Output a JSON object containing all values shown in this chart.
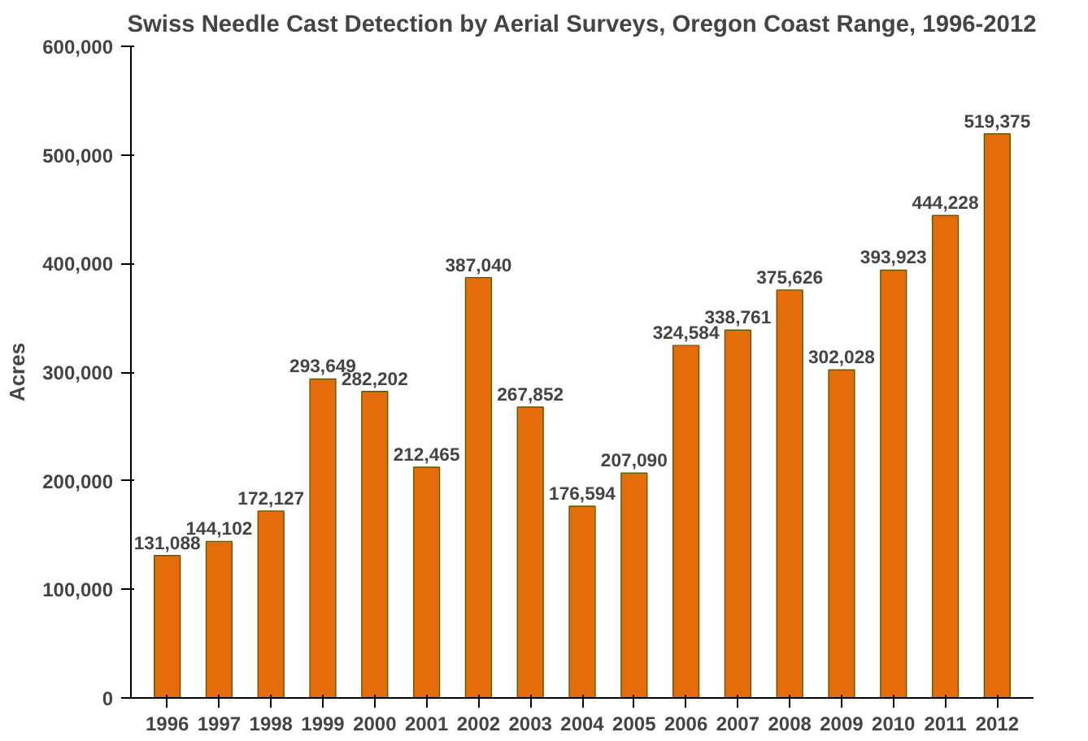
{
  "chart_data": {
    "type": "bar",
    "title": "Swiss Needle Cast Detection by Aerial Surveys, Oregon Coast Range, 1996-2012",
    "ylabel": "Acres",
    "categories": [
      "1996",
      "1997",
      "1998",
      "1999",
      "2000",
      "2001",
      "2002",
      "2003",
      "2004",
      "2005",
      "2006",
      "2007",
      "2008",
      "2009",
      "2010",
      "2011",
      "2012"
    ],
    "values": [
      131088,
      144102,
      172127,
      293649,
      282202,
      212465,
      387040,
      267852,
      176594,
      207090,
      324584,
      338761,
      375626,
      302028,
      393923,
      444228,
      519375
    ],
    "color": "#e46c0a",
    "value_labels": [
      "131,088",
      "144,102",
      "172,127",
      "293,649",
      "282,202",
      "212,465",
      "387,040",
      "267,852",
      "176,594",
      "207,090",
      "324,584",
      "338,761",
      "375,626",
      "302,028",
      "393,923",
      "444,228",
      "519,375"
    ],
    "ylim": [
      0,
      600000
    ],
    "yticks": [
      {
        "value": 0,
        "label": "0"
      },
      {
        "value": 100000,
        "label": "100,000"
      },
      {
        "value": 200000,
        "label": "200,000"
      },
      {
        "value": 300000,
        "label": "300,000"
      },
      {
        "value": 400000,
        "label": "400,000"
      },
      {
        "value": 500000,
        "label": "500,000"
      },
      {
        "value": 600000,
        "label": "600,000"
      }
    ],
    "grid": false
  }
}
